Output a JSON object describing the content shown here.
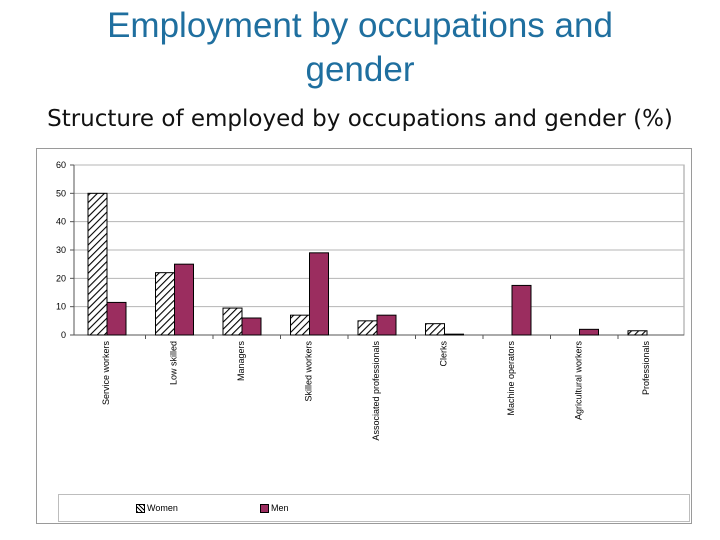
{
  "slide": {
    "title": "Employment by occupations and gender"
  },
  "chart_data": {
    "type": "bar",
    "title": "Structure of employed by occupations and gender (%)",
    "xlabel": "",
    "ylabel": "",
    "ylim": [
      0,
      60
    ],
    "yticks": [
      0,
      10,
      20,
      30,
      40,
      50,
      60
    ],
    "grid": true,
    "legend_position": "bottom",
    "categories": [
      "Service workers",
      "Low skilled",
      "Managers",
      "Skilled workers",
      "Associated professionals",
      "Clerks",
      "Machine operators",
      "Agricultural workers",
      "Professionals"
    ],
    "series": [
      {
        "name": "Women",
        "values": [
          50,
          22,
          9.5,
          7,
          5,
          4,
          0,
          0,
          1.5
        ]
      },
      {
        "name": "Men",
        "values": [
          11.5,
          25,
          6,
          29,
          7,
          0.3,
          17.5,
          2,
          0
        ]
      }
    ],
    "colors": {
      "women": "#000000",
      "men": "#9b2d5f"
    }
  }
}
